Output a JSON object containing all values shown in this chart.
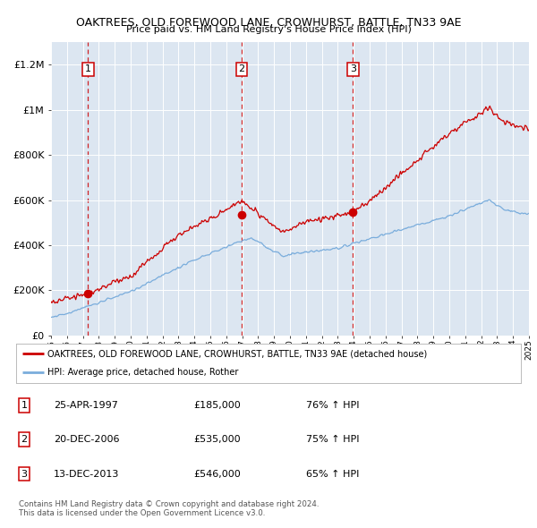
{
  "title": "OAKTREES, OLD FOREWOOD LANE, CROWHURST, BATTLE, TN33 9AE",
  "subtitle": "Price paid vs. HM Land Registry's House Price Index (HPI)",
  "legend_line1": "OAKTREES, OLD FOREWOOD LANE, CROWHURST, BATTLE, TN33 9AE (detached house)",
  "legend_line2": "HPI: Average price, detached house, Rother",
  "table_rows": [
    [
      "1",
      "25-APR-1997",
      "£185,000",
      "76% ↑ HPI"
    ],
    [
      "2",
      "20-DEC-2006",
      "£535,000",
      "75% ↑ HPI"
    ],
    [
      "3",
      "13-DEC-2013",
      "£546,000",
      "65% ↑ HPI"
    ]
  ],
  "footnote1": "Contains HM Land Registry data © Crown copyright and database right 2024.",
  "footnote2": "This data is licensed under the Open Government Licence v3.0.",
  "plot_bg_color": "#dce6f1",
  "red_line_color": "#cc0000",
  "blue_line_color": "#7aaddc",
  "sale_marker_color": "#cc0000",
  "vline_color": "#cc0000",
  "ylim": [
    0,
    1300000
  ],
  "yticks": [
    0,
    200000,
    400000,
    600000,
    800000,
    1000000,
    1200000
  ],
  "ytick_labels": [
    "£0",
    "£200K",
    "£400K",
    "£600K",
    "£800K",
    "£1M",
    "£1.2M"
  ],
  "xstart": 1995,
  "xend": 2025,
  "sale_dates": [
    1997.32,
    2006.97,
    2013.96
  ],
  "sale_prices": [
    185000,
    535000,
    546000
  ],
  "sale_numbers": [
    "1",
    "2",
    "3"
  ]
}
